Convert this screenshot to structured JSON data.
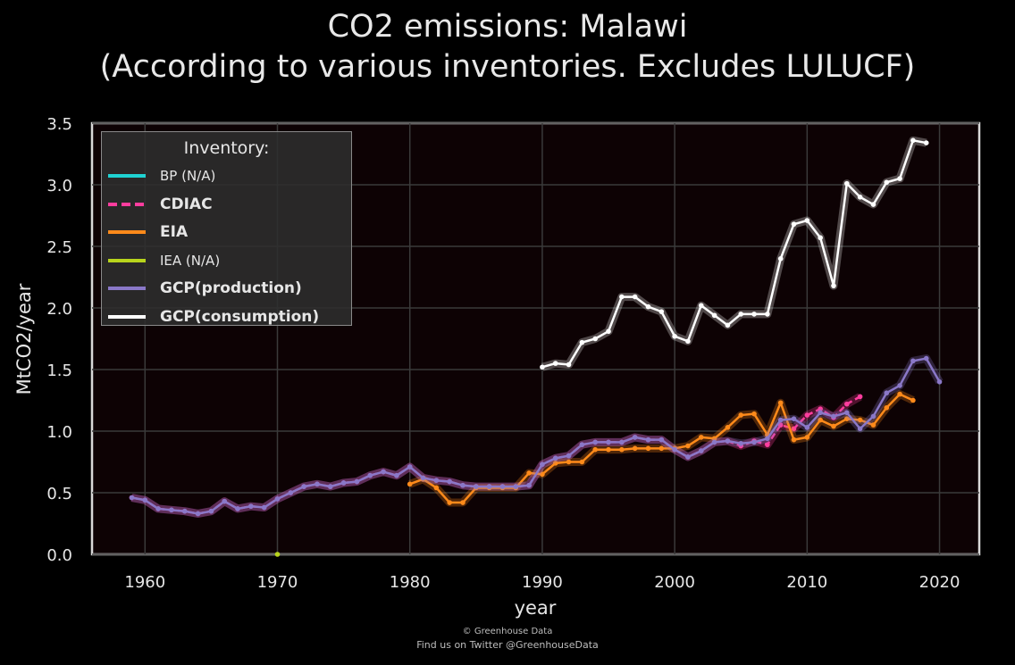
{
  "title": {
    "line1": "CO2 emissions: Malawi",
    "line2": "(According to various inventories. Excludes LULUCF)"
  },
  "footer": {
    "line1": "© Greenhouse Data",
    "line2": "Find us on Twitter @GreenhouseData"
  },
  "legend": {
    "title": "Inventory:",
    "items": [
      {
        "label": "BP (N/A)",
        "color": "#1fd2d2",
        "style": "solid",
        "bold": false
      },
      {
        "label": "CDIAC",
        "color": "#ff3d9e",
        "style": "dashed",
        "bold": true
      },
      {
        "label": "EIA",
        "color": "#ff8a1a",
        "style": "solid",
        "bold": true
      },
      {
        "label": "IEA (N/A)",
        "color": "#b8d41c",
        "style": "solid",
        "bold": false
      },
      {
        "label": "GCP(production)",
        "color": "#8a78c8",
        "style": "solid",
        "bold": true
      },
      {
        "label": "GCP(consumption)",
        "color": "#ffffff",
        "style": "solid",
        "bold": true
      }
    ]
  },
  "chart_data": {
    "type": "line",
    "xlabel": "year",
    "ylabel": "MtCO2/year",
    "xlim": [
      1956,
      2023
    ],
    "ylim": [
      0,
      3.5
    ],
    "xticks": [
      1960,
      1970,
      1980,
      1990,
      2000,
      2010,
      2020
    ],
    "yticks": [
      0.0,
      0.5,
      1.0,
      1.5,
      2.0,
      2.5,
      3.0,
      3.5
    ],
    "ytick_labels": [
      "0.0",
      "0.5",
      "1.0",
      "1.5",
      "2.0",
      "2.5",
      "3.0",
      "3.5"
    ],
    "grid": true,
    "legend_position": "top-left",
    "series": [
      {
        "name": "CDIAC",
        "color": "#ff3d9e",
        "dashed": true,
        "x": [
          1959,
          1960,
          1961,
          1962,
          1963,
          1964,
          1965,
          1966,
          1967,
          1968,
          1969,
          1970,
          1971,
          1972,
          1973,
          1974,
          1975,
          1976,
          1977,
          1978,
          1979,
          1980,
          1981,
          1982,
          1983,
          1984,
          1985,
          1986,
          1987,
          1988,
          1989,
          1990,
          1991,
          1992,
          1993,
          1994,
          1995,
          1996,
          1997,
          1998,
          1999,
          2000,
          2001,
          2002,
          2003,
          2004,
          2005,
          2006,
          2007,
          2008,
          2009,
          2010,
          2011,
          2012,
          2013,
          2014
        ],
        "y": [
          0.46,
          0.44,
          0.37,
          0.36,
          0.35,
          0.33,
          0.35,
          0.43,
          0.37,
          0.39,
          0.38,
          0.45,
          0.5,
          0.55,
          0.57,
          0.55,
          0.58,
          0.59,
          0.64,
          0.67,
          0.64,
          0.71,
          0.62,
          0.6,
          0.59,
          0.56,
          0.55,
          0.55,
          0.55,
          0.55,
          0.56,
          0.73,
          0.78,
          0.8,
          0.89,
          0.91,
          0.91,
          0.91,
          0.95,
          0.93,
          0.93,
          0.85,
          0.79,
          0.84,
          0.91,
          0.92,
          0.88,
          0.92,
          0.89,
          1.05,
          1.02,
          1.13,
          1.18,
          1.11,
          1.22,
          1.28
        ]
      },
      {
        "name": "EIA",
        "color": "#ff8a1a",
        "dashed": false,
        "x": [
          1980,
          1981,
          1982,
          1983,
          1984,
          1985,
          1986,
          1987,
          1988,
          1989,
          1990,
          1991,
          1992,
          1993,
          1994,
          1995,
          1996,
          1997,
          1998,
          1999,
          2000,
          2001,
          2002,
          2003,
          2004,
          2005,
          2006,
          2007,
          2008,
          2009,
          2010,
          2011,
          2012,
          2013,
          2014,
          2015,
          2016,
          2017,
          2018
        ],
        "y": [
          0.57,
          0.61,
          0.54,
          0.42,
          0.42,
          0.54,
          0.54,
          0.54,
          0.54,
          0.66,
          0.65,
          0.74,
          0.75,
          0.75,
          0.85,
          0.85,
          0.85,
          0.86,
          0.86,
          0.86,
          0.86,
          0.88,
          0.95,
          0.94,
          1.03,
          1.13,
          1.14,
          0.97,
          1.23,
          0.93,
          0.95,
          1.09,
          1.04,
          1.1,
          1.09,
          1.05,
          1.19,
          1.3,
          1.25
        ]
      },
      {
        "name": "IEA (N/A)",
        "color": "#b8d41c",
        "dashed": false,
        "x": [
          1970
        ],
        "y": [
          0.0
        ]
      },
      {
        "name": "GCP(production)",
        "color": "#8a78c8",
        "dashed": false,
        "x": [
          1959,
          1960,
          1961,
          1962,
          1963,
          1964,
          1965,
          1966,
          1967,
          1968,
          1969,
          1970,
          1971,
          1972,
          1973,
          1974,
          1975,
          1976,
          1977,
          1978,
          1979,
          1980,
          1981,
          1982,
          1983,
          1984,
          1985,
          1986,
          1987,
          1988,
          1989,
          1990,
          1991,
          1992,
          1993,
          1994,
          1995,
          1996,
          1997,
          1998,
          1999,
          2000,
          2001,
          2002,
          2003,
          2004,
          2005,
          2006,
          2007,
          2008,
          2009,
          2010,
          2011,
          2012,
          2013,
          2014,
          2015,
          2016,
          2017,
          2018,
          2019,
          2020
        ],
        "y": [
          0.46,
          0.44,
          0.37,
          0.36,
          0.35,
          0.33,
          0.35,
          0.43,
          0.37,
          0.39,
          0.38,
          0.45,
          0.5,
          0.55,
          0.57,
          0.55,
          0.58,
          0.59,
          0.64,
          0.67,
          0.64,
          0.71,
          0.62,
          0.6,
          0.59,
          0.56,
          0.55,
          0.55,
          0.55,
          0.55,
          0.56,
          0.73,
          0.78,
          0.8,
          0.89,
          0.91,
          0.91,
          0.91,
          0.95,
          0.93,
          0.93,
          0.85,
          0.79,
          0.84,
          0.91,
          0.92,
          0.9,
          0.91,
          0.94,
          1.09,
          1.1,
          1.03,
          1.15,
          1.12,
          1.15,
          1.02,
          1.12,
          1.31,
          1.37,
          1.57,
          1.59,
          1.4
        ]
      },
      {
        "name": "GCP(consumption)",
        "color": "#ffffff",
        "dashed": false,
        "x": [
          1990,
          1991,
          1992,
          1993,
          1994,
          1995,
          1996,
          1997,
          1998,
          1999,
          2000,
          2001,
          2002,
          2003,
          2004,
          2005,
          2006,
          2007,
          2008,
          2009,
          2010,
          2011,
          2012,
          2013,
          2014,
          2015,
          2016,
          2017,
          2018,
          2019
        ],
        "y": [
          1.52,
          1.55,
          1.54,
          1.72,
          1.75,
          1.81,
          2.09,
          2.09,
          2.01,
          1.97,
          1.77,
          1.73,
          2.02,
          1.94,
          1.86,
          1.95,
          1.95,
          1.95,
          2.4,
          2.68,
          2.71,
          2.57,
          2.18,
          3.01,
          2.9,
          2.84,
          3.02,
          3.05,
          3.36,
          3.34
        ]
      }
    ]
  }
}
